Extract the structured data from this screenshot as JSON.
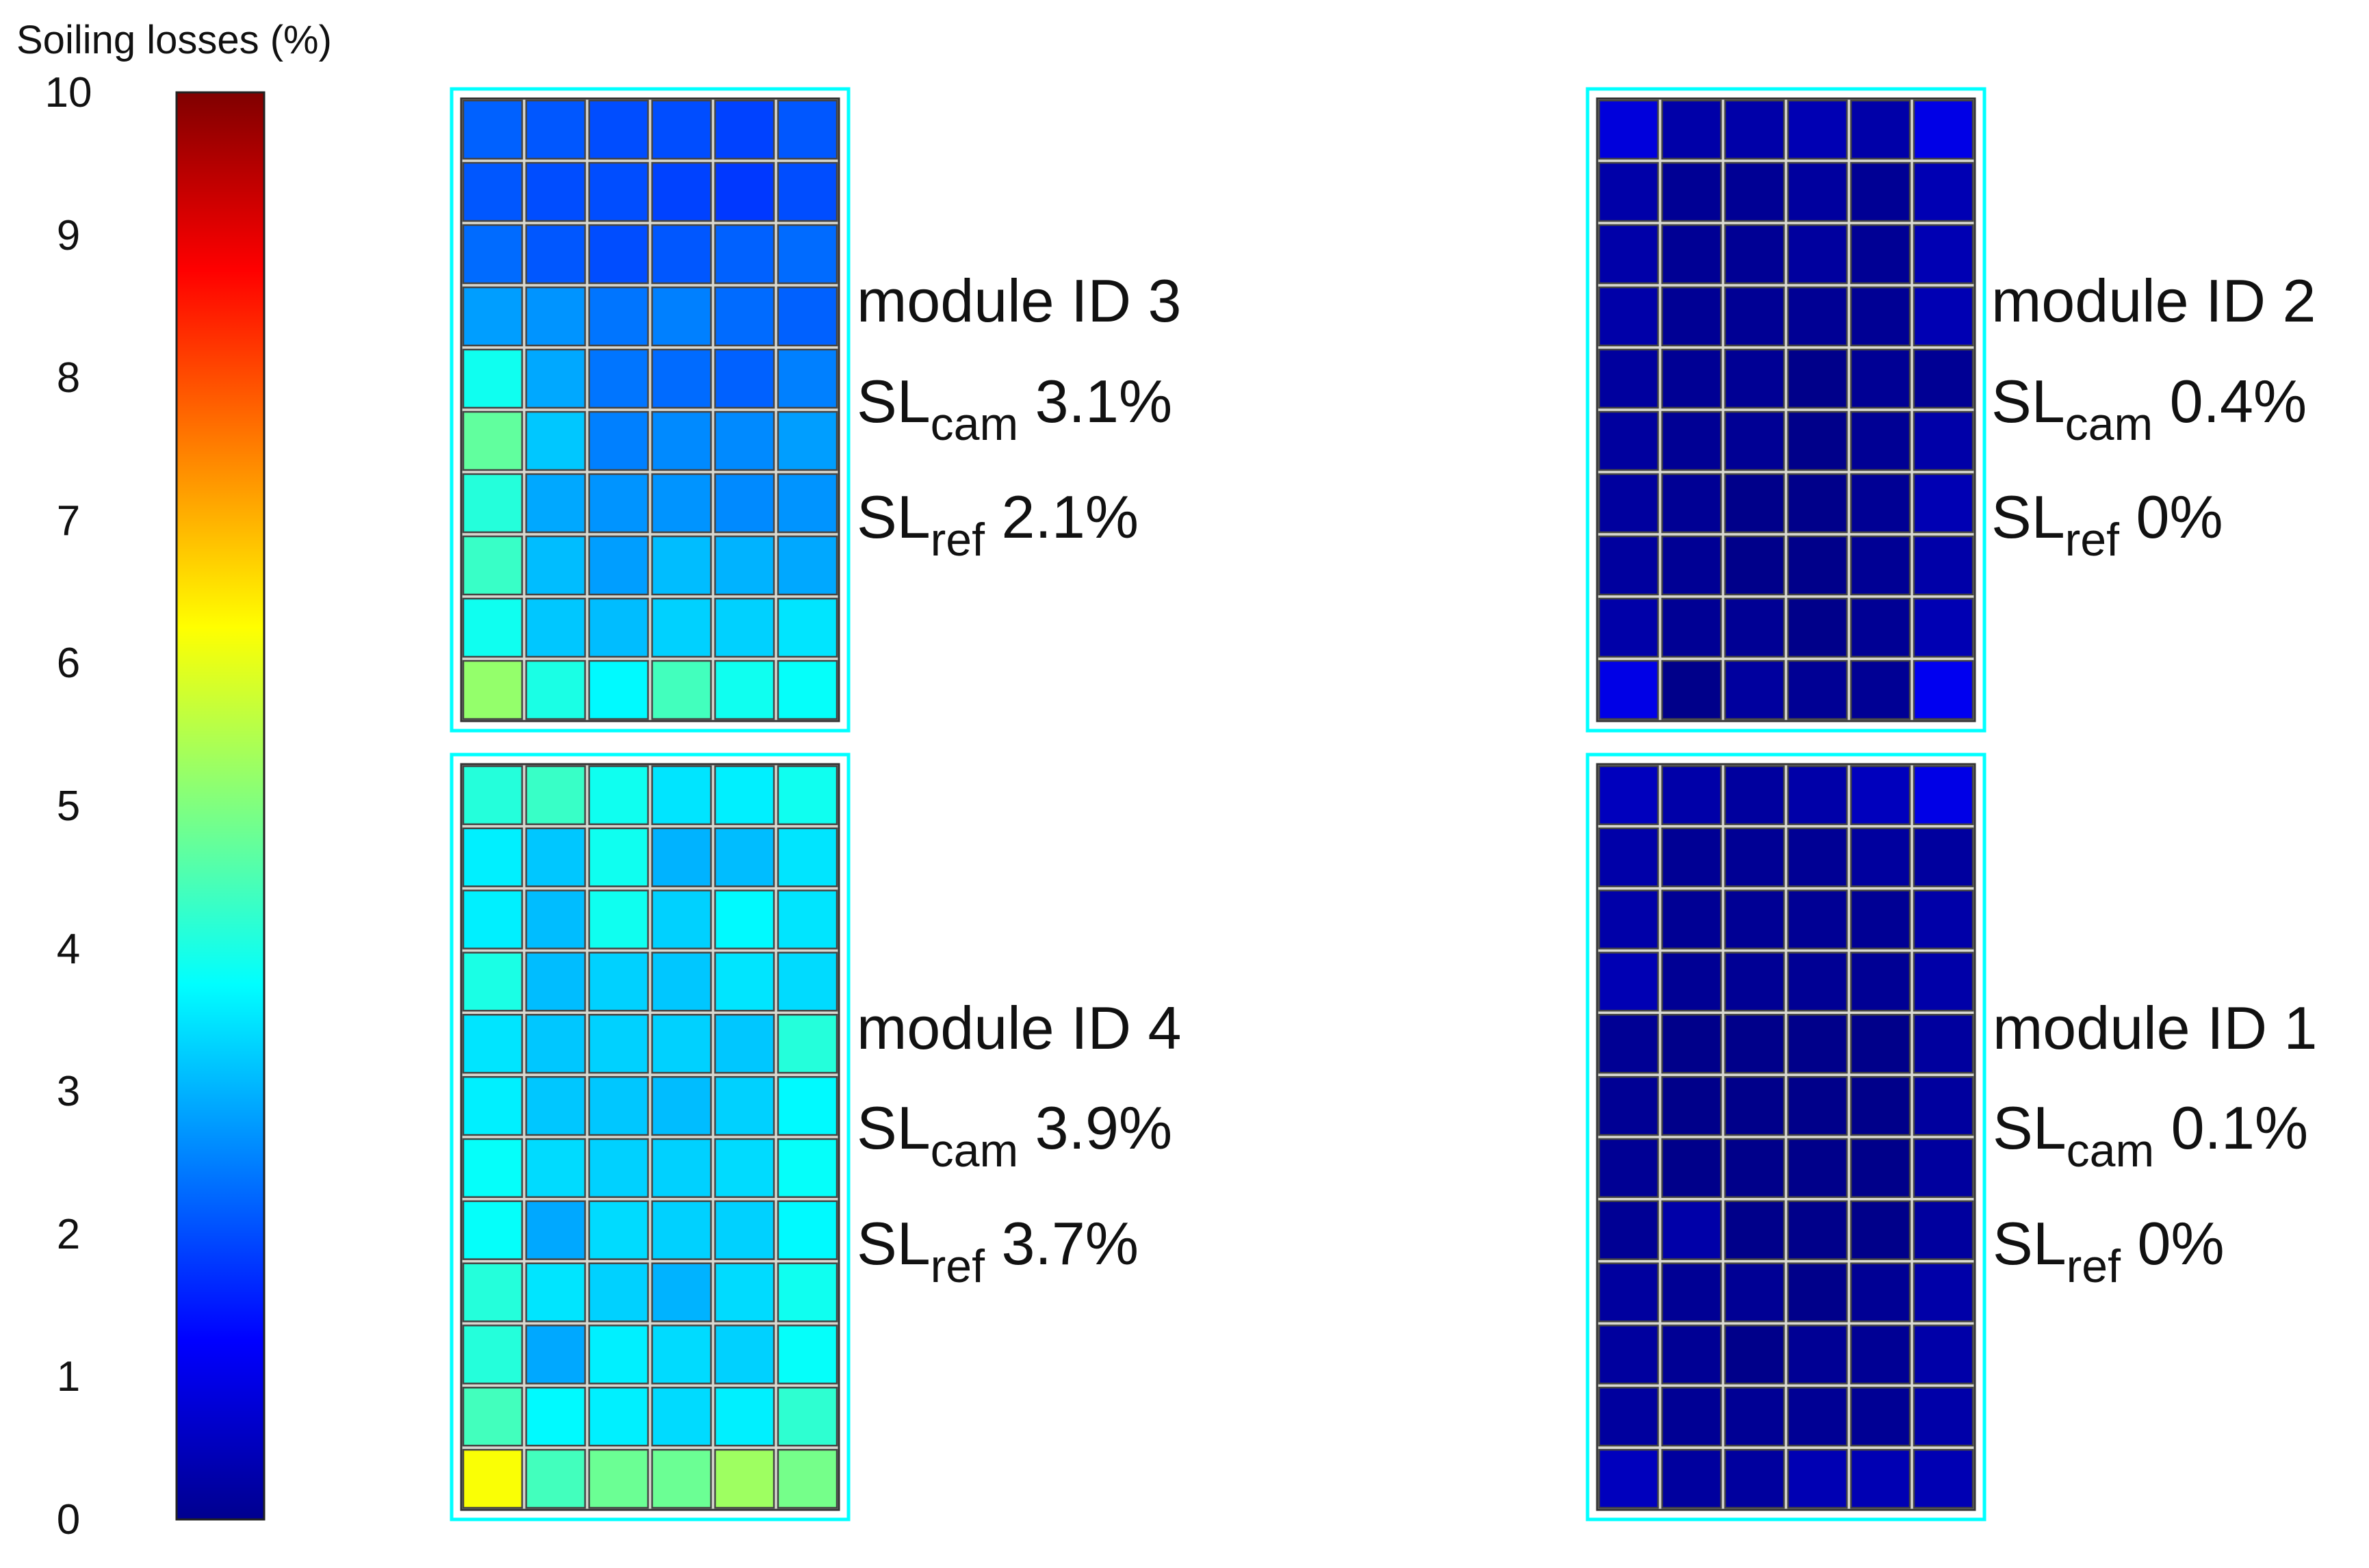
{
  "colorbar": {
    "title": "Soiling losses (%)",
    "ticks": [
      "0",
      "1",
      "2",
      "3",
      "4",
      "5",
      "6",
      "7",
      "8",
      "9",
      "10"
    ],
    "range": [
      0,
      10
    ],
    "colormap": "jet"
  },
  "highlight_color": "#00ffff",
  "chart_data": {
    "type": "heatmap",
    "value_unit": "%",
    "modules": [
      {
        "id_label": "module ID 3",
        "sl_cam_value": "3.1%",
        "sl_ref_value": "2.1%",
        "rows": 10,
        "cols": 6,
        "values": [
          [
            2.2,
            2.1,
            2.0,
            2.0,
            1.9,
            2.1
          ],
          [
            2.1,
            2.0,
            2.0,
            1.9,
            1.8,
            2.0
          ],
          [
            2.3,
            2.1,
            2.0,
            2.1,
            2.2,
            2.3
          ],
          [
            2.8,
            2.7,
            2.4,
            2.5,
            2.3,
            2.2
          ],
          [
            3.9,
            2.9,
            2.4,
            2.3,
            2.2,
            2.5
          ],
          [
            4.7,
            3.2,
            2.5,
            2.6,
            2.6,
            2.8
          ],
          [
            4.1,
            2.9,
            2.7,
            2.7,
            2.6,
            2.7
          ],
          [
            4.3,
            3.1,
            2.8,
            3.1,
            3.0,
            2.9
          ],
          [
            3.9,
            3.2,
            3.1,
            3.3,
            3.3,
            3.5
          ],
          [
            5.2,
            4.0,
            3.7,
            4.4,
            3.9,
            3.8
          ]
        ]
      },
      {
        "id_label": "module ID 2",
        "sl_cam_value": "0.4%",
        "sl_ref_value": "0%",
        "rows": 10,
        "cols": 6,
        "values": [
          [
            0.9,
            0.4,
            0.4,
            0.5,
            0.4,
            1.0
          ],
          [
            0.4,
            0.2,
            0.2,
            0.3,
            0.2,
            0.5
          ],
          [
            0.4,
            0.2,
            0.2,
            0.3,
            0.2,
            0.5
          ],
          [
            0.4,
            0.2,
            0.2,
            0.2,
            0.2,
            0.5
          ],
          [
            0.3,
            0.2,
            0.2,
            0.1,
            0.2,
            0.2
          ],
          [
            0.3,
            0.2,
            0.2,
            0.1,
            0.2,
            0.4
          ],
          [
            0.3,
            0.2,
            0.1,
            0.1,
            0.2,
            0.5
          ],
          [
            0.3,
            0.2,
            0.1,
            0.1,
            0.2,
            0.4
          ],
          [
            0.4,
            0.2,
            0.2,
            0.1,
            0.2,
            0.5
          ],
          [
            1.0,
            0.1,
            0.3,
            0.2,
            0.2,
            1.1
          ]
        ]
      },
      {
        "id_label": "module ID 4",
        "sl_cam_value": "3.9%",
        "sl_ref_value": "3.7%",
        "rows": 12,
        "cols": 6,
        "values": [
          [
            4.1,
            4.3,
            3.9,
            3.5,
            3.6,
            3.9
          ],
          [
            3.6,
            3.2,
            3.9,
            3.0,
            3.1,
            3.5
          ],
          [
            3.6,
            3.1,
            3.9,
            3.3,
            3.7,
            3.5
          ],
          [
            4.0,
            3.1,
            3.3,
            3.2,
            3.5,
            3.4
          ],
          [
            3.5,
            3.2,
            3.3,
            3.3,
            3.2,
            4.1
          ],
          [
            3.6,
            3.2,
            3.2,
            3.1,
            3.3,
            3.7
          ],
          [
            3.8,
            3.4,
            3.3,
            3.3,
            3.4,
            3.8
          ],
          [
            3.8,
            2.9,
            3.4,
            3.3,
            3.3,
            3.7
          ],
          [
            4.1,
            3.5,
            3.3,
            3.0,
            3.4,
            3.9
          ],
          [
            4.1,
            2.9,
            3.6,
            3.4,
            3.3,
            3.8
          ],
          [
            4.4,
            3.7,
            3.6,
            3.4,
            3.6,
            4.2
          ],
          [
            6.2,
            4.4,
            4.8,
            4.8,
            5.3,
            4.9
          ]
        ]
      },
      {
        "id_label": "module ID 1",
        "sl_cam_value": "0.1%",
        "sl_ref_value": "0%",
        "rows": 12,
        "cols": 6,
        "values": [
          [
            0.6,
            0.4,
            0.3,
            0.4,
            0.6,
            1.0
          ],
          [
            0.4,
            0.2,
            0.2,
            0.2,
            0.3,
            0.3
          ],
          [
            0.4,
            0.2,
            0.2,
            0.2,
            0.2,
            0.4
          ],
          [
            0.5,
            0.2,
            0.2,
            0.2,
            0.2,
            0.4
          ],
          [
            0.2,
            0.1,
            0.1,
            0.1,
            0.1,
            0.3
          ],
          [
            0.2,
            0.1,
            0.1,
            0.1,
            0.1,
            0.3
          ],
          [
            0.2,
            0.1,
            0.1,
            0.1,
            0.1,
            0.3
          ],
          [
            0.2,
            0.4,
            0.1,
            0.1,
            0.1,
            0.3
          ],
          [
            0.3,
            0.2,
            0.2,
            0.1,
            0.2,
            0.4
          ],
          [
            0.3,
            0.2,
            0.1,
            0.2,
            0.2,
            0.4
          ],
          [
            0.3,
            0.2,
            0.2,
            0.2,
            0.2,
            0.4
          ],
          [
            0.6,
            0.3,
            0.3,
            0.5,
            0.5,
            0.5
          ]
        ]
      }
    ]
  }
}
